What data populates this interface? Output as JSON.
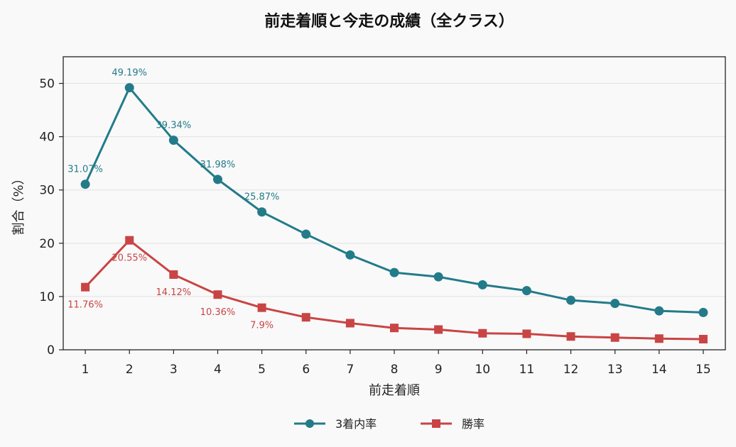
{
  "chart_data": {
    "type": "line",
    "title": "前走着順と今走の成績（全クラス）",
    "xlabel": "前走着順",
    "ylabel": "割合（%）",
    "x": [
      1,
      2,
      3,
      4,
      5,
      6,
      7,
      8,
      9,
      10,
      11,
      12,
      13,
      14,
      15
    ],
    "xlim": [
      0.5,
      15.5
    ],
    "ylim": [
      0,
      55
    ],
    "yticks": [
      0,
      10,
      20,
      30,
      40,
      50
    ],
    "grid": "horizontal",
    "legend_position": "bottom-center",
    "series": [
      {
        "name": "3着内率",
        "color": "#237b89",
        "marker": "circle",
        "values": [
          31.07,
          49.19,
          39.34,
          31.98,
          25.87,
          21.7,
          17.8,
          14.5,
          13.7,
          12.2,
          11.1,
          9.3,
          8.7,
          7.3,
          7.0
        ],
        "labels": [
          "31.07%",
          "49.19%",
          "39.34%",
          "31.98%",
          "25.87%"
        ]
      },
      {
        "name": "勝率",
        "color": "#c94444",
        "marker": "square",
        "values": [
          11.76,
          20.55,
          14.12,
          10.36,
          7.9,
          6.1,
          5.0,
          4.1,
          3.8,
          3.1,
          3.0,
          2.5,
          2.3,
          2.1,
          2.0
        ],
        "labels": [
          "11.76%",
          "20.55%",
          "14.12%",
          "10.36%",
          "7.9%"
        ]
      }
    ]
  }
}
